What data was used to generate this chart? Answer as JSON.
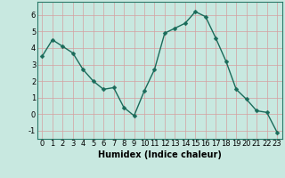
{
  "x": [
    0,
    1,
    2,
    3,
    4,
    5,
    6,
    7,
    8,
    9,
    10,
    11,
    12,
    13,
    14,
    15,
    16,
    17,
    18,
    19,
    20,
    21,
    22,
    23
  ],
  "y": [
    3.5,
    4.5,
    4.1,
    3.7,
    2.7,
    2.0,
    1.5,
    1.6,
    0.4,
    -0.1,
    1.4,
    2.7,
    4.9,
    5.2,
    5.5,
    6.2,
    5.9,
    4.6,
    3.2,
    1.5,
    0.9,
    0.2,
    0.1,
    -1.1
  ],
  "xlabel": "Humidex (Indice chaleur)",
  "line_color": "#1a6b5a",
  "marker_color": "#1a6b5a",
  "bg_color": "#c8e8e0",
  "grid_color": "#d4a0a0",
  "xlim": [
    -0.5,
    23.5
  ],
  "ylim": [
    -1.5,
    6.8
  ],
  "yticks": [
    -1,
    0,
    1,
    2,
    3,
    4,
    5,
    6
  ],
  "xtick_labels": [
    "0",
    "1",
    "2",
    "3",
    "4",
    "5",
    "6",
    "7",
    "8",
    "9",
    "10",
    "11",
    "12",
    "13",
    "14",
    "15",
    "16",
    "17",
    "18",
    "19",
    "20",
    "21",
    "22",
    "23"
  ],
  "tick_fontsize": 6,
  "xlabel_fontsize": 7,
  "linewidth": 1.0,
  "markersize": 2.5
}
